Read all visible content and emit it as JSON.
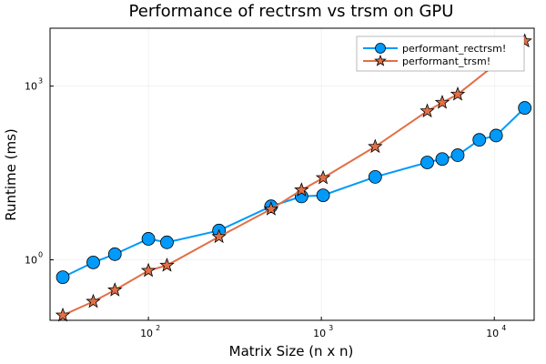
{
  "chart_data": {
    "type": "line",
    "title": "Performance of rectrsm vs trsm on GPU",
    "xlabel": "Matrix Size (n x n)",
    "ylabel": "Runtime (ms)",
    "x_scale": "log10",
    "y_scale": "log10",
    "xlim": [
      27,
      17000
    ],
    "ylim": [
      0.09,
      10000
    ],
    "grid": true,
    "legend_position": "top-right",
    "x_ticks": [
      {
        "value": 100,
        "base": "10",
        "exp": "2"
      },
      {
        "value": 1000,
        "base": "10",
        "exp": "3"
      },
      {
        "value": 10000,
        "base": "10",
        "exp": "4"
      }
    ],
    "y_ticks": [
      {
        "value": 1,
        "base": "10",
        "exp": "0"
      },
      {
        "value": 1000,
        "base": "10",
        "exp": "3"
      }
    ],
    "series": [
      {
        "name": "performant_rectrsm!",
        "color": "#009AFA",
        "marker": "circle",
        "points": [
          [
            32,
            0.5
          ],
          [
            48,
            0.9
          ],
          [
            64,
            1.25
          ],
          [
            100,
            2.3
          ],
          [
            128,
            2.0
          ],
          [
            256,
            3.2
          ],
          [
            512,
            8.4
          ],
          [
            768,
            12.4
          ],
          [
            1024,
            13.0
          ],
          [
            2048,
            27.0
          ],
          [
            4096,
            48.0
          ],
          [
            5000,
            55.0
          ],
          [
            6144,
            64.0
          ],
          [
            8192,
            118.0
          ],
          [
            10240,
            140.0
          ],
          [
            15000,
            420.0
          ]
        ]
      },
      {
        "name": "performant_trsm!",
        "color": "#E26F46",
        "marker": "star",
        "points": [
          [
            32,
            0.11
          ],
          [
            48,
            0.19
          ],
          [
            64,
            0.3
          ],
          [
            100,
            0.65
          ],
          [
            128,
            0.8
          ],
          [
            256,
            2.5
          ],
          [
            512,
            7.5
          ],
          [
            768,
            16.0
          ],
          [
            1024,
            26.0
          ],
          [
            2048,
            90.0
          ],
          [
            4096,
            370.0
          ],
          [
            5000,
            520.0
          ],
          [
            6144,
            720.0
          ],
          [
            15000,
            6000.0
          ]
        ]
      }
    ]
  }
}
